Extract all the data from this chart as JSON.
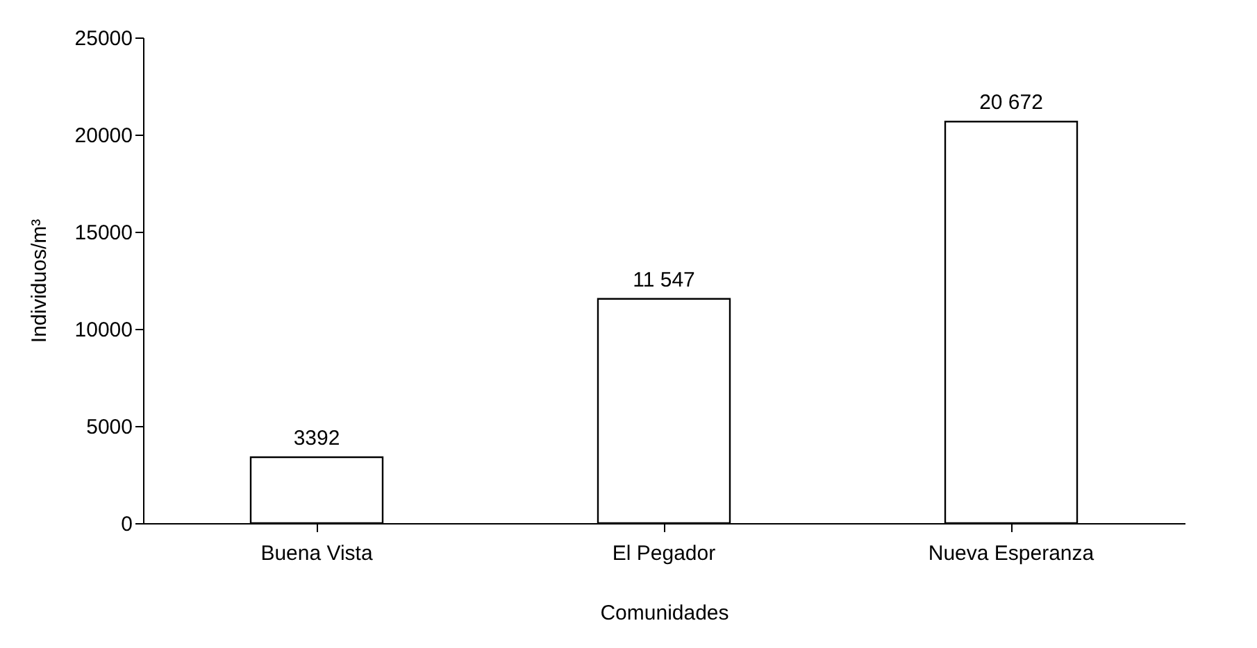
{
  "chart_data": {
    "type": "bar",
    "categories": [
      "Buena Vista",
      "El Pegador",
      "Nueva Esperanza"
    ],
    "values": [
      3392,
      11547,
      20672
    ],
    "value_labels": [
      "3392",
      "11 547",
      "20 672"
    ],
    "color": "#ffffff",
    "xlabel": "Comunidades",
    "ylabel": "Individuos/m³",
    "ylim": [
      0,
      25000
    ],
    "yticks": [
      0,
      5000,
      10000,
      15000,
      20000,
      25000
    ],
    "grid": false
  }
}
